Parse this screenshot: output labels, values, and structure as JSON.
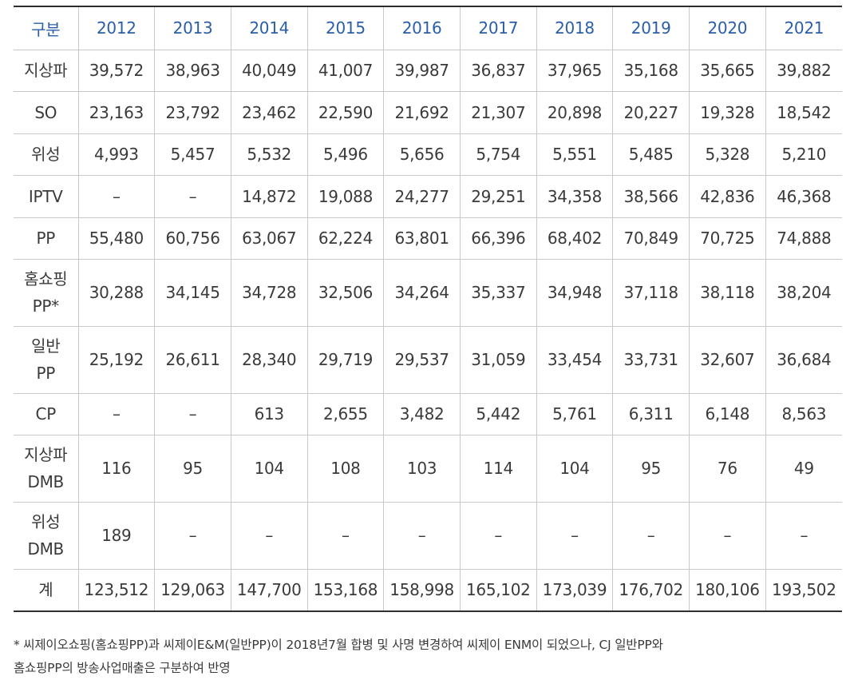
{
  "table": {
    "header": [
      "구분",
      "2012",
      "2013",
      "2014",
      "2015",
      "2016",
      "2017",
      "2018",
      "2019",
      "2020",
      "2021"
    ],
    "rows": [
      {
        "label": [
          "지상파"
        ],
        "values": [
          "39,572",
          "38,963",
          "40,049",
          "41,007",
          "39,987",
          "36,837",
          "37,965",
          "35,168",
          "35,665",
          "39,882"
        ]
      },
      {
        "label": [
          "SO"
        ],
        "values": [
          "23,163",
          "23,792",
          "23,462",
          "22,590",
          "21,692",
          "21,307",
          "20,898",
          "20,227",
          "19,328",
          "18,542"
        ]
      },
      {
        "label": [
          "위성"
        ],
        "values": [
          "4,993",
          "5,457",
          "5,532",
          "5,496",
          "5,656",
          "5,754",
          "5,551",
          "5,485",
          "5,328",
          "5,210"
        ]
      },
      {
        "label": [
          "IPTV"
        ],
        "values": [
          "–",
          "–",
          "14,872",
          "19,088",
          "24,277",
          "29,251",
          "34,358",
          "38,566",
          "42,836",
          "46,368"
        ]
      },
      {
        "label": [
          "PP"
        ],
        "values": [
          "55,480",
          "60,756",
          "63,067",
          "62,224",
          "63,801",
          "66,396",
          "68,402",
          "70,849",
          "70,725",
          "74,888"
        ]
      },
      {
        "label": [
          "홈쇼핑",
          "PP*"
        ],
        "values": [
          "30,288",
          "34,145",
          "34,728",
          "32,506",
          "34,264",
          "35,337",
          "34,948",
          "37,118",
          "38,118",
          "38,204"
        ]
      },
      {
        "label": [
          "일반",
          "PP"
        ],
        "values": [
          "25,192",
          "26,611",
          "28,340",
          "29,719",
          "29,537",
          "31,059",
          "33,454",
          "33,731",
          "32,607",
          "36,684"
        ]
      },
      {
        "label": [
          "CP"
        ],
        "values": [
          "–",
          "–",
          "613",
          "2,655",
          "3,482",
          "5,442",
          "5,761",
          "6,311",
          "6,148",
          "8,563"
        ]
      },
      {
        "label": [
          "지상파",
          "DMB"
        ],
        "values": [
          "116",
          "95",
          "104",
          "108",
          "103",
          "114",
          "104",
          "95",
          "76",
          "49"
        ]
      },
      {
        "label": [
          "위성",
          "DMB"
        ],
        "values": [
          "189",
          "–",
          "–",
          "–",
          "–",
          "–",
          "–",
          "–",
          "–",
          "–"
        ]
      },
      {
        "label": [
          "계"
        ],
        "values": [
          "123,512",
          "129,063",
          "147,700",
          "153,168",
          "158,998",
          "165,102",
          "173,039",
          "176,702",
          "180,106",
          "193,502"
        ]
      }
    ]
  },
  "footnote": {
    "line1": "* 씨제이오쇼핑(홈쇼핑PP)과 씨제이E&M(일반PP)이 2018년7월 합병 및 사명 변경하여 씨제이 ENM이 되었으나, CJ 일반PP와",
    "line2": "홈쇼핑PP의 방송사업매출은 구분하여 반영"
  },
  "colors": {
    "header_text": "#2a5ea8",
    "rule_dark": "#2f2f2f",
    "rule_light": "#c8c8c8",
    "body_text": "#3a3a3a"
  }
}
